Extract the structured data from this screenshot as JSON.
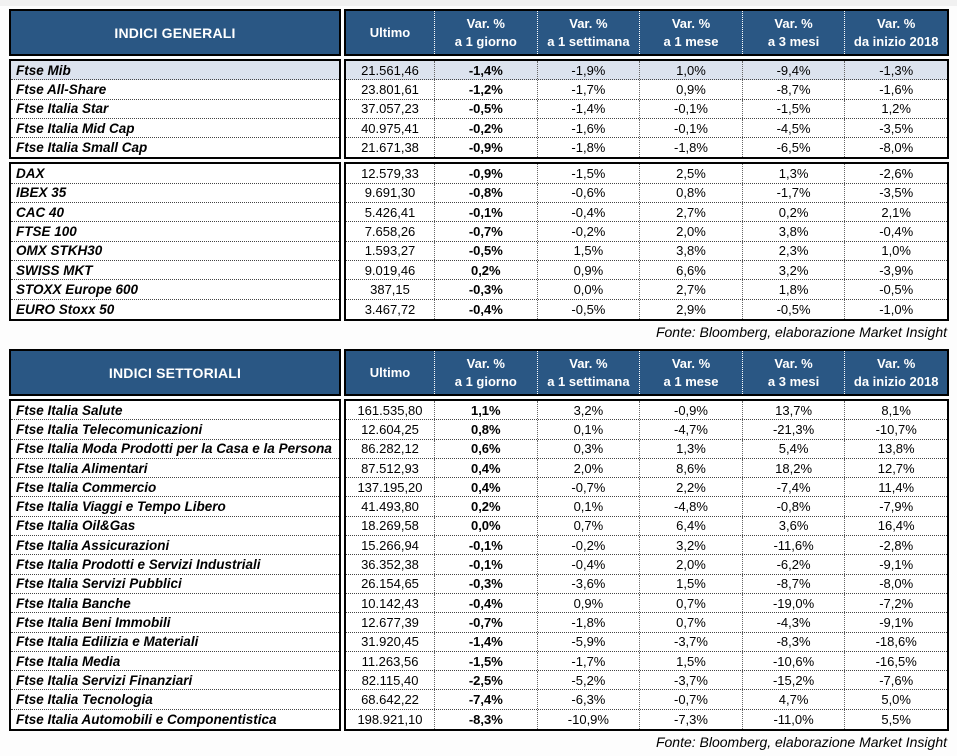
{
  "colors": {
    "header_bg": "#2A5784",
    "highlight_bg": "#DCE3EE"
  },
  "columns": [
    {
      "l1": "Ultimo",
      "l2": ""
    },
    {
      "l1": "Var. %",
      "l2": "a 1 giorno"
    },
    {
      "l1": "Var. %",
      "l2": "a 1 settimana"
    },
    {
      "l1": "Var. %",
      "l2": "a 1 mese"
    },
    {
      "l1": "Var. %",
      "l2": "a 3 mesi"
    },
    {
      "l1": "Var. %",
      "l2": "da inizio 2018"
    }
  ],
  "tables": [
    {
      "title": "INDICI GENERALI",
      "fonte": "Fonte: Bloomberg, elaborazione Market Insight",
      "blocks": [
        {
          "rows": [
            {
              "name": "Ftse Mib",
              "hl": true,
              "values": [
                "21.561,46",
                "-1,4%",
                "-1,9%",
                "1,0%",
                "-9,4%",
                "-1,3%"
              ]
            },
            {
              "name": "Ftse All-Share",
              "hl": false,
              "values": [
                "23.801,61",
                "-1,2%",
                "-1,7%",
                "0,9%",
                "-8,7%",
                "-1,6%"
              ]
            },
            {
              "name": "Ftse Italia Star",
              "hl": false,
              "values": [
                "37.057,23",
                "-0,5%",
                "-1,4%",
                "-0,1%",
                "-1,5%",
                "1,2%"
              ]
            },
            {
              "name": "Ftse Italia Mid Cap",
              "hl": false,
              "values": [
                "40.975,41",
                "-0,2%",
                "-1,6%",
                "-0,1%",
                "-4,5%",
                "-3,5%"
              ]
            },
            {
              "name": "Ftse Italia Small Cap",
              "hl": false,
              "values": [
                "21.671,38",
                "-0,9%",
                "-1,8%",
                "-1,8%",
                "-6,5%",
                "-8,0%"
              ]
            }
          ]
        },
        {
          "rows": [
            {
              "name": "DAX",
              "hl": false,
              "values": [
                "12.579,33",
                "-0,9%",
                "-1,5%",
                "2,5%",
                "1,3%",
                "-2,6%"
              ]
            },
            {
              "name": "IBEX 35",
              "hl": false,
              "values": [
                "9.691,30",
                "-0,8%",
                "-0,6%",
                "0,8%",
                "-1,7%",
                "-3,5%"
              ]
            },
            {
              "name": "CAC 40",
              "hl": false,
              "values": [
                "5.426,41",
                "-0,1%",
                "-0,4%",
                "2,7%",
                "0,2%",
                "2,1%"
              ]
            },
            {
              "name": "FTSE 100",
              "hl": false,
              "values": [
                "7.658,26",
                "-0,7%",
                "-0,2%",
                "2,0%",
                "3,8%",
                "-0,4%"
              ]
            },
            {
              "name": "OMX STKH30",
              "hl": false,
              "values": [
                "1.593,27",
                "-0,5%",
                "1,5%",
                "3,8%",
                "2,3%",
                "1,0%"
              ]
            },
            {
              "name": "SWISS MKT",
              "hl": false,
              "values": [
                "9.019,46",
                "0,2%",
                "0,9%",
                "6,6%",
                "3,2%",
                "-3,9%"
              ]
            },
            {
              "name": "STOXX Europe 600",
              "hl": false,
              "values": [
                "387,15",
                "-0,3%",
                "0,0%",
                "2,7%",
                "1,8%",
                "-0,5%"
              ]
            },
            {
              "name": "EURO Stoxx 50",
              "hl": false,
              "values": [
                "3.467,72",
                "-0,4%",
                "-0,5%",
                "2,9%",
                "-0,5%",
                "-1,0%"
              ]
            }
          ]
        }
      ]
    },
    {
      "title": "INDICI SETTORIALI",
      "fonte": "Fonte: Bloomberg, elaborazione Market Insight",
      "blocks": [
        {
          "rows": [
            {
              "name": "Ftse Italia Salute",
              "hl": false,
              "values": [
                "161.535,80",
                "1,1%",
                "3,2%",
                "-0,9%",
                "13,7%",
                "8,1%"
              ]
            },
            {
              "name": "Ftse Italia Telecomunicazioni",
              "hl": false,
              "values": [
                "12.604,25",
                "0,8%",
                "0,1%",
                "-4,7%",
                "-21,3%",
                "-10,7%"
              ]
            },
            {
              "name": "Ftse Italia Moda Prodotti per la Casa e la Persona",
              "hl": false,
              "values": [
                "86.282,12",
                "0,6%",
                "0,3%",
                "1,3%",
                "5,4%",
                "13,8%"
              ]
            },
            {
              "name": "Ftse Italia Alimentari",
              "hl": false,
              "values": [
                "87.512,93",
                "0,4%",
                "2,0%",
                "8,6%",
                "18,2%",
                "12,7%"
              ]
            },
            {
              "name": "Ftse Italia Commercio",
              "hl": false,
              "values": [
                "137.195,20",
                "0,4%",
                "-0,7%",
                "2,2%",
                "-7,4%",
                "11,4%"
              ]
            },
            {
              "name": "Ftse Italia Viaggi e Tempo Libero",
              "hl": false,
              "values": [
                "41.493,80",
                "0,2%",
                "0,1%",
                "-4,8%",
                "-0,8%",
                "-7,9%"
              ]
            },
            {
              "name": "Ftse Italia Oil&Gas",
              "hl": false,
              "values": [
                "18.269,58",
                "0,0%",
                "0,7%",
                "6,4%",
                "3,6%",
                "16,4%"
              ]
            },
            {
              "name": "Ftse Italia Assicurazioni",
              "hl": false,
              "values": [
                "15.266,94",
                "-0,1%",
                "-0,2%",
                "3,2%",
                "-11,6%",
                "-2,8%"
              ]
            },
            {
              "name": "Ftse Italia Prodotti e Servizi Industriali",
              "hl": false,
              "values": [
                "36.352,38",
                "-0,1%",
                "-0,4%",
                "2,0%",
                "-6,2%",
                "-9,1%"
              ]
            },
            {
              "name": "Ftse Italia Servizi Pubblici",
              "hl": false,
              "values": [
                "26.154,65",
                "-0,3%",
                "-3,6%",
                "1,5%",
                "-8,7%",
                "-8,0%"
              ]
            },
            {
              "name": "Ftse Italia Banche",
              "hl": false,
              "values": [
                "10.142,43",
                "-0,4%",
                "0,9%",
                "0,7%",
                "-19,0%",
                "-7,2%"
              ]
            },
            {
              "name": "Ftse Italia Beni Immobili",
              "hl": false,
              "values": [
                "12.677,39",
                "-0,7%",
                "-1,8%",
                "0,7%",
                "-4,3%",
                "-9,1%"
              ]
            },
            {
              "name": "Ftse Italia Edilizia e Materiali",
              "hl": false,
              "values": [
                "31.920,45",
                "-1,4%",
                "-5,9%",
                "-3,7%",
                "-8,3%",
                "-18,6%"
              ]
            },
            {
              "name": "Ftse Italia Media",
              "hl": false,
              "values": [
                "11.263,56",
                "-1,5%",
                "-1,7%",
                "1,5%",
                "-10,6%",
                "-16,5%"
              ]
            },
            {
              "name": "Ftse Italia Servizi Finanziari",
              "hl": false,
              "values": [
                "82.115,40",
                "-2,5%",
                "-5,2%",
                "-3,7%",
                "-15,2%",
                "-7,6%"
              ]
            },
            {
              "name": "Ftse Italia Tecnologia",
              "hl": false,
              "values": [
                "68.642,22",
                "-7,4%",
                "-6,3%",
                "-0,7%",
                "4,7%",
                "5,0%"
              ]
            },
            {
              "name": "Ftse Italia Automobili e Componentistica",
              "hl": false,
              "values": [
                "198.921,10",
                "-8,3%",
                "-10,9%",
                "-7,3%",
                "-11,0%",
                "5,5%"
              ]
            }
          ]
        }
      ]
    }
  ]
}
